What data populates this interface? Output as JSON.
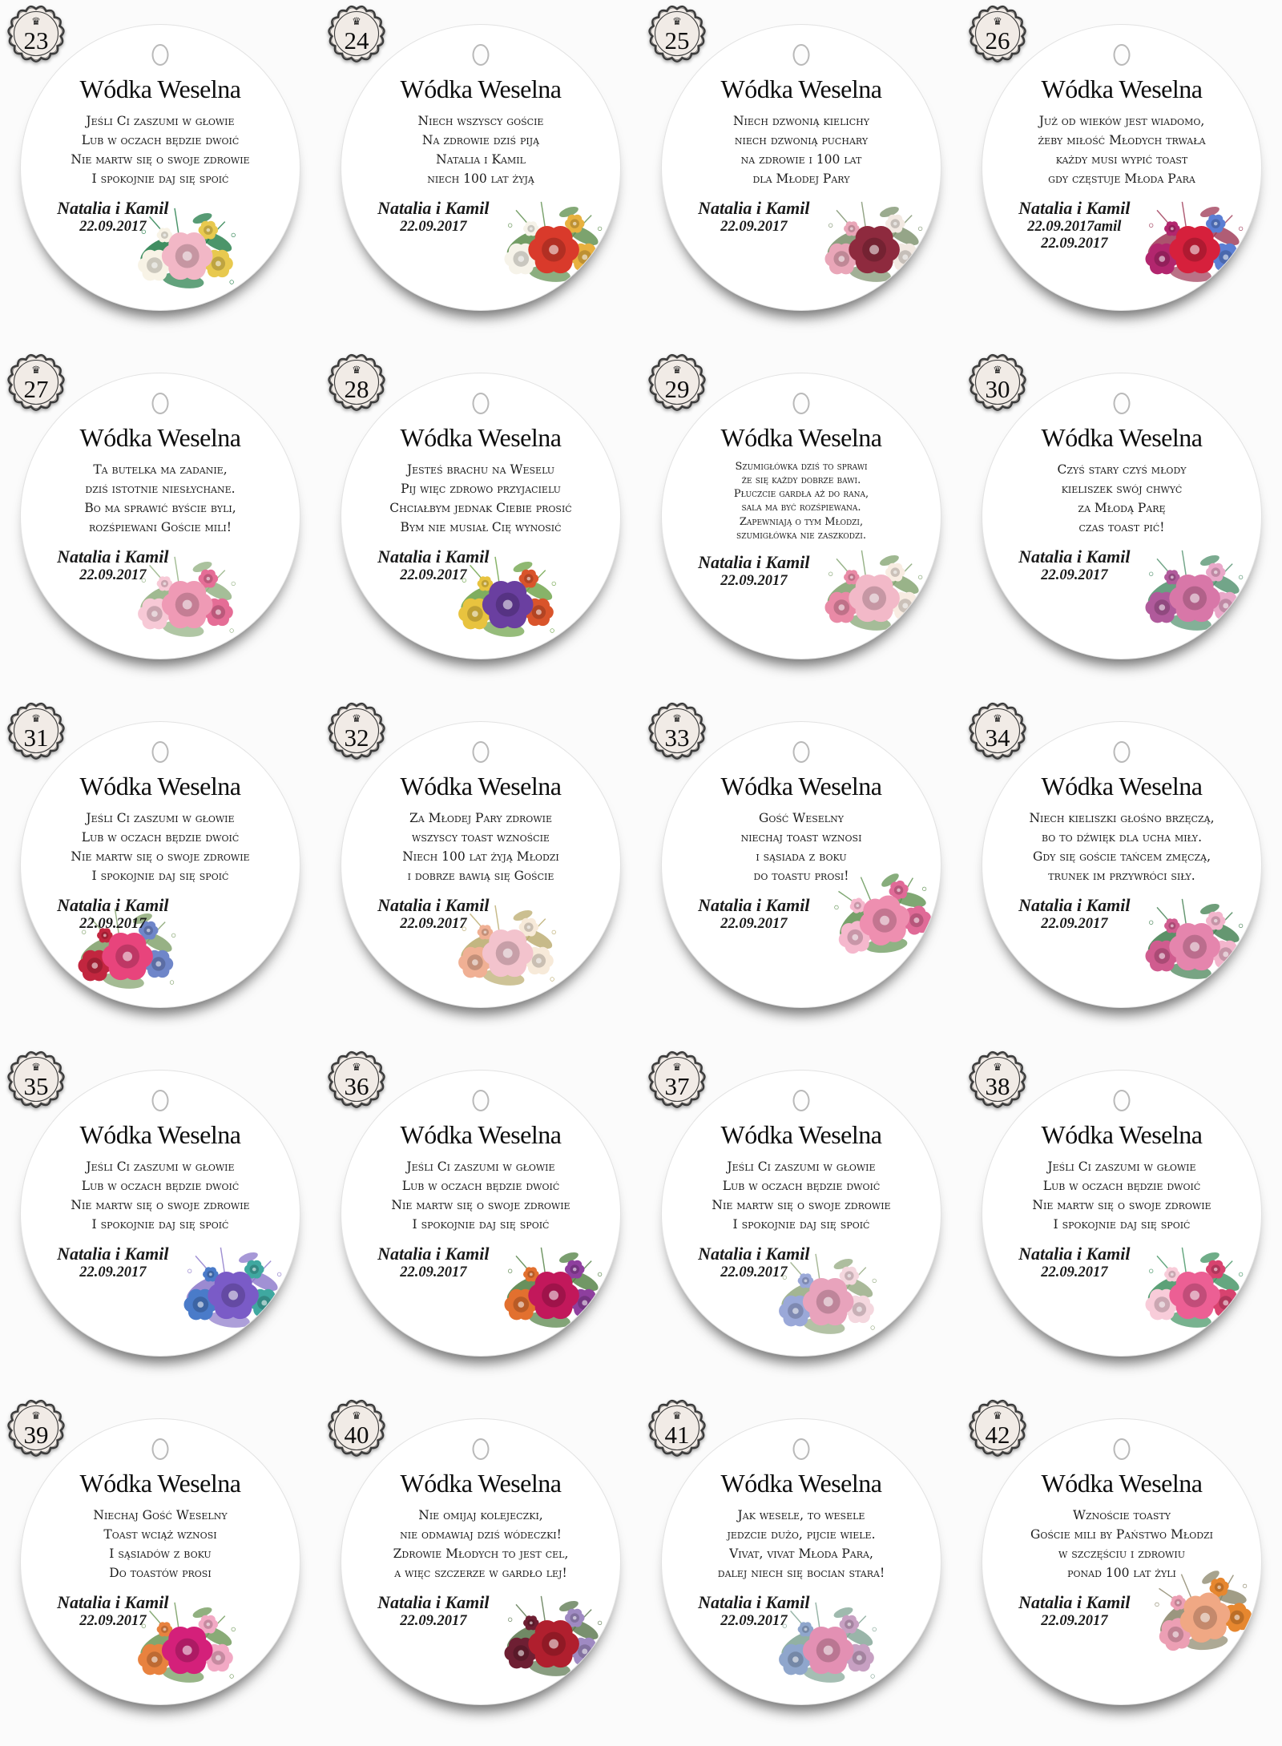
{
  "style": {
    "background": "#fbfbfb",
    "disc_fill": "#ffffff",
    "text_color": "#1a1a1a",
    "badge_fill": "#f1ebe6",
    "badge_border": "#3b3b3b",
    "hole_border": "#b9b9b9"
  },
  "badge": {
    "crown_icon": "♛"
  },
  "tags": [
    {
      "number": "23",
      "title": "Wódka Weselna",
      "poem": [
        "Jeśli Ci zaszumi w głowie",
        "Lub w oczach będzie dwoić",
        "Nie martw się o swoje zdrowie",
        "I spokojnie daj się spoić"
      ],
      "signature": "Natalia i Kamil",
      "dates": [
        "22.09.2017"
      ],
      "flowers": {
        "position": "bc",
        "leaf": "#1f7a45",
        "petals": [
          "#f2b7c6",
          "#f8f3e6",
          "#e8c94f"
        ]
      }
    },
    {
      "number": "24",
      "title": "Wódka Weselna",
      "poem": [
        "Niech wszyscy goście",
        "Na zdrowie dziś piją",
        "Natalia i Kamil",
        "niech 100 lat żyją"
      ],
      "signature": "Natalia i Kamil",
      "dates": [
        "22.09.2017"
      ],
      "flowers": {
        "position": "br",
        "leaf": "#5b8c4a",
        "petals": [
          "#d93a2b",
          "#f6f3e9",
          "#e8b13f"
        ]
      }
    },
    {
      "number": "25",
      "title": "Wódka Weselna",
      "poem": [
        "Niech dzwonią kielichy",
        "niech dzwonią puchary",
        "na zdrowie i 100 lat",
        "dla Młodej Pary"
      ],
      "signature": "Natalia i Kamil",
      "dates": [
        "22.09.2017"
      ],
      "flowers": {
        "position": "br",
        "leaf": "#7a8f6a",
        "petals": [
          "#8e2a3e",
          "#e9a6b8",
          "#f2e9e2"
        ]
      }
    },
    {
      "number": "26",
      "title": "Wódka Weselna",
      "poem": [
        "Już od wieków jest wiadomo,",
        "żeby miłość Młodych trwała",
        "każdy musi wypić toast",
        "gdy częstuje Młoda Para"
      ],
      "signature": "Natalia i Kamil",
      "dates": [
        "22.09.2017amil",
        "22.09.2017"
      ],
      "flowers": {
        "position": "br",
        "leaf": "#9c3553",
        "petals": [
          "#d6203c",
          "#b2266e",
          "#5b7fd4"
        ]
      }
    },
    {
      "number": "27",
      "title": "Wódka Weselna",
      "poem": [
        "Ta butelka ma zadanie,",
        "dziś istotnie niesłychane.",
        "Bo ma sprawić byście byli,",
        "rozśpiewani Goście mili!"
      ],
      "signature": "Natalia i Kamil",
      "dates": [
        "22.09.2017"
      ],
      "flowers": {
        "position": "bc",
        "leaf": "#8fae7e",
        "petals": [
          "#ef9ab5",
          "#f7c9d6",
          "#e56d96"
        ]
      }
    },
    {
      "number": "28",
      "title": "Wódka Weselna",
      "poem": [
        "Jesteś brachu na Weselu",
        "Pij więc zdrowo przyjacielu",
        "Chciałbym jednak Ciebie prosić",
        "Bym nie musiał Cię wynosić"
      ],
      "signature": "Natalia i Kamil",
      "dates": [
        "22.09.2017"
      ],
      "flowers": {
        "position": "bc",
        "leaf": "#69a043",
        "petals": [
          "#6a3fa0",
          "#e8c33f",
          "#d9542b"
        ]
      }
    },
    {
      "number": "29",
      "title": "Wódka Weselna",
      "poem": [
        "Szumigłówka dziś to sprawi",
        "że się każdy dobrze bawi.",
        "Płuczcie gardła aż do rana,",
        "sala ma być rozśpiewana.",
        "Zapewniają o tym Młodzi,",
        "szumigłówka nie zaszkodzi."
      ],
      "signature": "Natalia i Kamil",
      "dates": [
        "22.09.2017"
      ],
      "flowers": {
        "position": "br",
        "leaf": "#7fa06c",
        "petals": [
          "#f2b9c8",
          "#e98aa6",
          "#f8ece2"
        ]
      }
    },
    {
      "number": "30",
      "title": "Wódka Weselna",
      "poem": [
        "Czyś stary czyś młody",
        "kieliszek swój chwyć",
        "za Młodą Parę",
        "czas toast pić!"
      ],
      "signature": "Natalia i Kamil",
      "dates": [
        "22.09.2017"
      ],
      "flowers": {
        "position": "br",
        "leaf": "#4f8f6b",
        "petals": [
          "#d877a8",
          "#b05a9b",
          "#e9a8c9"
        ]
      }
    },
    {
      "number": "31",
      "title": "Wódka Weselna",
      "poem": [
        "Jeśli Ci zaszumi w głowie",
        "Lub w oczach będzie dwoić",
        "Nie martw się o swoje zdrowie",
        "I spokojnie daj się spoić"
      ],
      "signature": "Natalia i Kamil",
      "dates": [
        "22.09.2017"
      ],
      "flowers": {
        "position": "bl",
        "leaf": "#7d9e66",
        "petals": [
          "#e8447c",
          "#c2263f",
          "#6f86c9"
        ]
      }
    },
    {
      "number": "32",
      "title": "Wódka Weselna",
      "poem": [
        "Za Młodej Pary zdrowie",
        "wszyscy toast wznoście",
        "Niech 100 lat żyją Młodzi",
        "i dobrze bawią się Goście"
      ],
      "signature": "Natalia i Kamil",
      "dates": [
        "22.09.2017"
      ],
      "flowers": {
        "position": "bc",
        "leaf": "#b9a96b",
        "petals": [
          "#f3c3cd",
          "#f0b094",
          "#f7ead9"
        ]
      }
    },
    {
      "number": "33",
      "title": "Wódka Weselna",
      "poem": [
        "Gość Weselny",
        "niechaj toast wznosi",
        "i sąsiada z boku",
        "do toastu prosi!"
      ],
      "signature": "Natalia i Kamil",
      "dates": [
        "22.09.2017"
      ],
      "flowers": {
        "position": "r",
        "leaf": "#5f9150",
        "petals": [
          "#ee8fb0",
          "#f5b8cd",
          "#e06a97"
        ]
      }
    },
    {
      "number": "34",
      "title": "Wódka Weselna",
      "poem": [
        "Niech kieliszki głośno brzęczą,",
        "bo to dźwięk dla ucha miły.",
        "Gdy się goście tańcem zmęczą,",
        "trunek im przywróci siły."
      ],
      "signature": "Natalia i Kamil",
      "dates": [
        "22.09.2017"
      ],
      "flowers": {
        "position": "br",
        "leaf": "#3f7d4e",
        "petals": [
          "#e585ad",
          "#d05c8f",
          "#f2b5cc"
        ]
      }
    },
    {
      "number": "35",
      "title": "Wódka Weselna",
      "poem": [
        "Jeśli Ci zaszumi w głowie",
        "Lub w oczach będzie dwoić",
        "Nie martw się o swoje zdrowie",
        "I spokojnie daj się spoić"
      ],
      "signature": "Natalia i Kamil",
      "dates": [
        "22.09.2017"
      ],
      "flowers": {
        "position": "br",
        "leaf": "#8a76c9",
        "petals": [
          "#7a5bc7",
          "#4a7bc9",
          "#3fa8a0"
        ]
      }
    },
    {
      "number": "36",
      "title": "Wódka Weselna",
      "poem": [
        "Jeśli Ci zaszumi w głowie",
        "Lub w oczach będzie dwoić",
        "Nie martw się o swoje zdrowie",
        "I spokojnie daj się spoić"
      ],
      "signature": "Natalia i Kamil",
      "dates": [
        "22.09.2017"
      ],
      "flowers": {
        "position": "br",
        "leaf": "#4e7d3f",
        "petals": [
          "#c2185b",
          "#e2702f",
          "#8e3f9e"
        ]
      }
    },
    {
      "number": "37",
      "title": "Wódka Weselna",
      "poem": [
        "Jeśli Ci zaszumi w głowie",
        "Lub w oczach będzie dwoić",
        "Nie martw się o swoje zdrowie",
        "I spokojnie daj się spoić"
      ],
      "signature": "Natalia i Kamil",
      "dates": [
        "22.09.2017"
      ],
      "flowers": {
        "position": "bc",
        "leaf": "#93a87f",
        "petals": [
          "#e8a3bc",
          "#9aa8d8",
          "#f4d7de"
        ]
      }
    },
    {
      "number": "38",
      "title": "Wódka Weselna",
      "poem": [
        "Jeśli Ci zaszumi w głowie",
        "Lub w oczach będzie dwoić",
        "Nie martw się o swoje zdrowie",
        "I spokojnie daj się spoić"
      ],
      "signature": "Natalia i Kamil",
      "dates": [
        "22.09.2017"
      ],
      "flowers": {
        "position": "br",
        "leaf": "#3f9160",
        "petals": [
          "#ec5f94",
          "#f8ccd9",
          "#d8436f"
        ]
      }
    },
    {
      "number": "39",
      "title": "Wódka Weselna",
      "poem": [
        "Niechaj Gość Weselny",
        "Toast wciąż wznosi",
        "I sąsiadów z boku",
        "Do toastów prosi"
      ],
      "signature": "Natalia i Kamil",
      "dates": [
        "22.09.2017"
      ],
      "flowers": {
        "position": "bc",
        "leaf": "#6c9655",
        "petals": [
          "#d4207a",
          "#e8823f",
          "#f2a9c4"
        ]
      }
    },
    {
      "number": "40",
      "title": "Wódka Weselna",
      "poem": [
        "Nie omijaj kolejeczki,",
        "nie odmawiaj dziś wódeczki!",
        "Zdrowie Młodych to jest cel,",
        "a więc szczerze w gardło lej!"
      ],
      "signature": "Natalia i Kamil",
      "dates": [
        "22.09.2017"
      ],
      "flowers": {
        "position": "br",
        "leaf": "#57744a",
        "petals": [
          "#b01f2e",
          "#6e1f33",
          "#9f8ac2"
        ]
      }
    },
    {
      "number": "41",
      "title": "Wódka Weselna",
      "poem": [
        "Jak wesele, to wesele",
        "jedzcie dużo, pijcie wiele.",
        "Vivat, vivat Młoda Para,",
        "dalej niech się bocian stara!"
      ],
      "signature": "Natalia i Kamil",
      "dates": [
        "22.09.2017"
      ],
      "flowers": {
        "position": "bc",
        "leaf": "#7fa393",
        "petals": [
          "#e390b3",
          "#8fa6cc",
          "#c7a0c2"
        ]
      }
    },
    {
      "number": "42",
      "title": "Wódka Weselna",
      "poem": [
        "Wznoście toasty",
        "Goście mili by Państwo Młodzi",
        "w szczęściu i zdrowiu",
        "ponad 100 lat żyli"
      ],
      "signature": "Natalia i Kamil",
      "dates": [
        "22.09.2017"
      ],
      "flowers": {
        "position": "r",
        "leaf": "#8a8468",
        "petals": [
          "#f0a884",
          "#ec9fb4",
          "#e6872f"
        ]
      }
    }
  ]
}
